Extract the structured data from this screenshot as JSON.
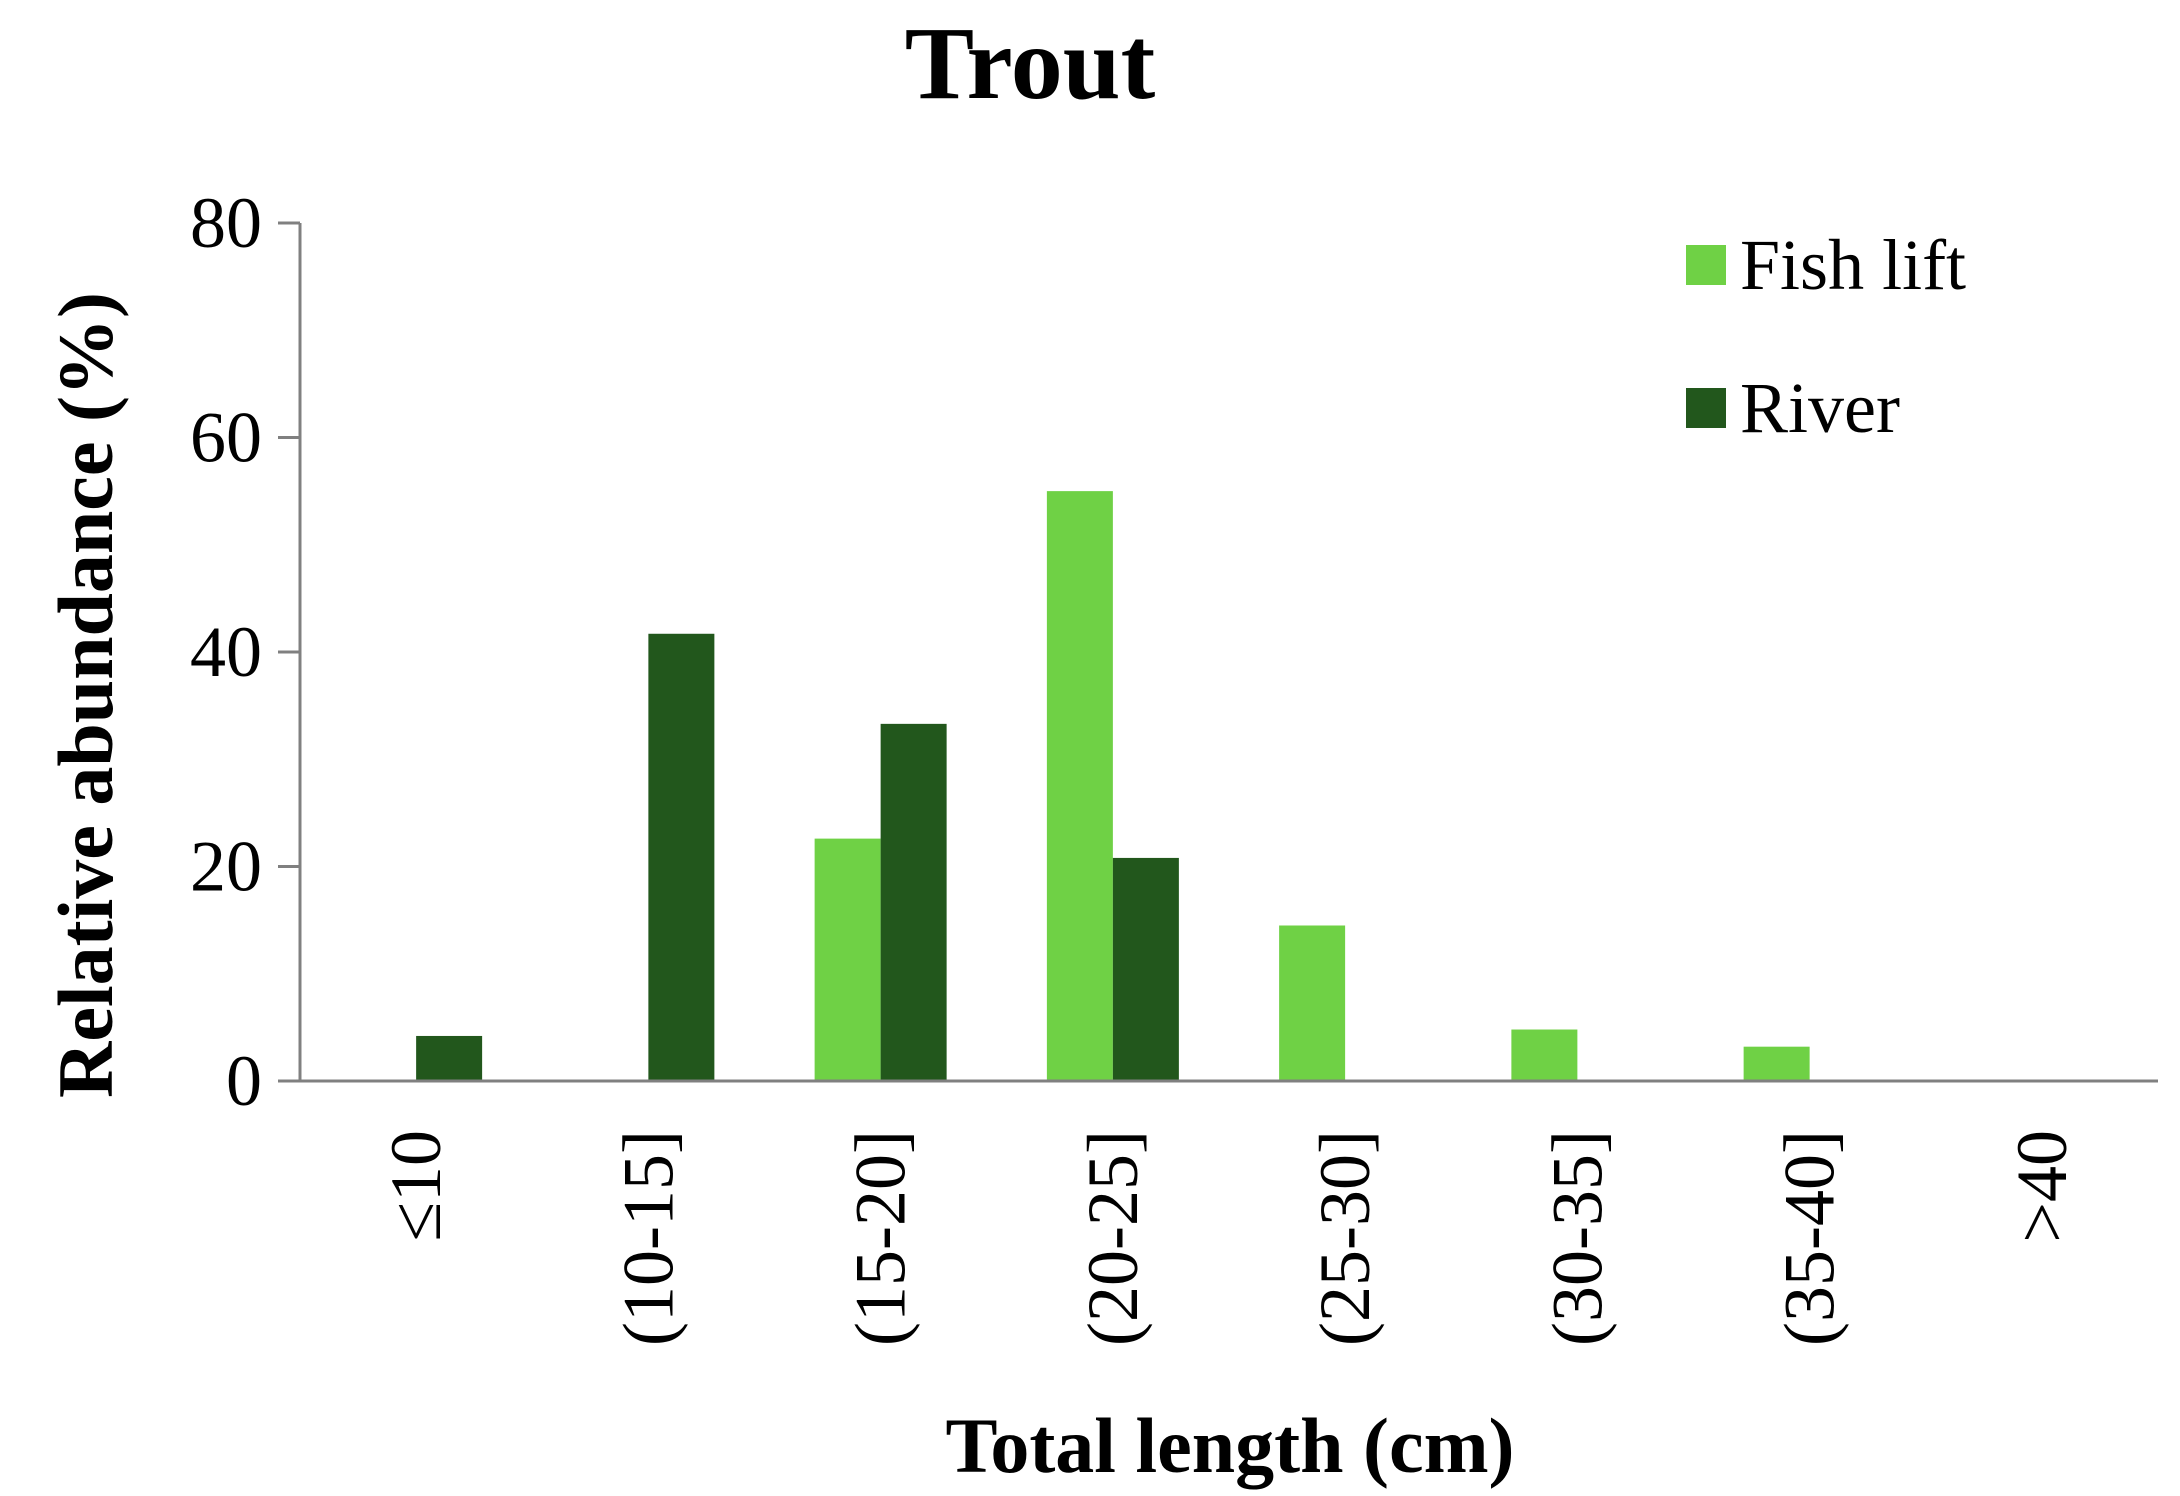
{
  "chart_data": {
    "type": "bar",
    "title": "Trout",
    "xlabel": "Total length (cm)",
    "ylabel": "Relative abundance (%)",
    "categories": [
      "≤10",
      "(10-15]",
      "(15-20]",
      "(20-25]",
      "(25-30]",
      "(30-35]",
      "(35-40]",
      ">40"
    ],
    "series": [
      {
        "name": "Fish lift",
        "color": "#6fd145",
        "values": [
          0,
          0,
          22.6,
          55.0,
          14.5,
          4.8,
          3.2,
          0
        ]
      },
      {
        "name": "River",
        "color": "#22571c",
        "values": [
          4.2,
          41.7,
          33.3,
          20.8,
          0,
          0,
          0,
          0
        ]
      }
    ],
    "ylim": [
      0,
      80
    ],
    "yticks": [
      0,
      20,
      40,
      60,
      80
    ],
    "grid": false,
    "legend_position": "top-right",
    "axis_color": "#808080"
  }
}
